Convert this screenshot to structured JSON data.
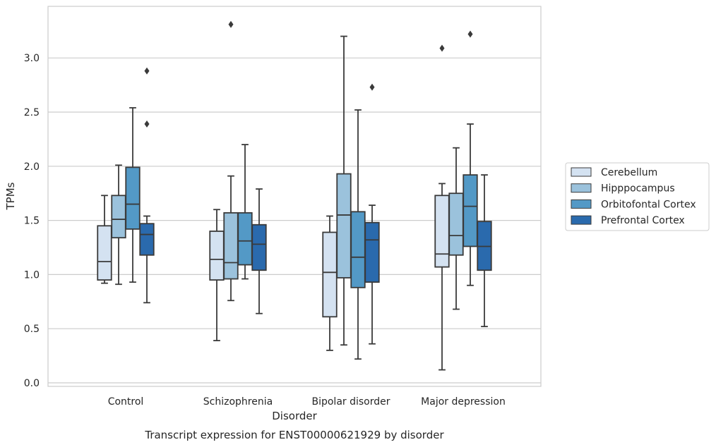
{
  "chart_data": {
    "type": "box",
    "title": "",
    "xlabel": "Disorder",
    "ylabel": "TPMs",
    "caption": "Transcript expression for ENST00000621929 by disorder",
    "categories": [
      "Control",
      "Schizophrenia",
      "Bipolar disorder",
      "Major depression"
    ],
    "y_ticks": [
      "0.0",
      "0.5",
      "1.0",
      "1.5",
      "2.0",
      "2.5",
      "3.0"
    ],
    "y_tick_values": [
      0,
      0.5,
      1.0,
      1.5,
      2.0,
      2.5,
      3.0
    ],
    "ylim": [
      -0.03,
      3.48
    ],
    "grid": true,
    "legend_position": "right",
    "series": [
      {
        "name": "Cerebellum",
        "color": "#d4e2f1",
        "boxes": [
          {
            "whisker_low": 0.92,
            "q1": 0.95,
            "median": 1.12,
            "q3": 1.45,
            "whisker_high": 1.73,
            "outliers": []
          },
          {
            "whisker_low": 0.39,
            "q1": 0.95,
            "median": 1.14,
            "q3": 1.4,
            "whisker_high": 1.6,
            "outliers": []
          },
          {
            "whisker_low": 0.3,
            "q1": 0.61,
            "median": 1.02,
            "q3": 1.39,
            "whisker_high": 1.54,
            "outliers": []
          },
          {
            "whisker_low": 0.12,
            "q1": 1.07,
            "median": 1.19,
            "q3": 1.73,
            "whisker_high": 1.84,
            "outliers": [
              3.09
            ]
          }
        ]
      },
      {
        "name": "Hipppocampus",
        "color": "#9bc2dc",
        "boxes": [
          {
            "whisker_low": 0.91,
            "q1": 1.34,
            "median": 1.51,
            "q3": 1.73,
            "whisker_high": 2.01,
            "outliers": []
          },
          {
            "whisker_low": 0.76,
            "q1": 0.96,
            "median": 1.11,
            "q3": 1.57,
            "whisker_high": 1.91,
            "outliers": [
              3.31
            ]
          },
          {
            "whisker_low": 0.35,
            "q1": 0.97,
            "median": 1.55,
            "q3": 1.93,
            "whisker_high": 3.2,
            "outliers": []
          },
          {
            "whisker_low": 0.68,
            "q1": 1.18,
            "median": 1.36,
            "q3": 1.75,
            "whisker_high": 2.17,
            "outliers": []
          }
        ]
      },
      {
        "name": "Orbitofontal Cortex",
        "color": "#5399c6",
        "boxes": [
          {
            "whisker_low": 0.93,
            "q1": 1.42,
            "median": 1.65,
            "q3": 1.99,
            "whisker_high": 2.54,
            "outliers": []
          },
          {
            "whisker_low": 0.96,
            "q1": 1.09,
            "median": 1.31,
            "q3": 1.57,
            "whisker_high": 2.2,
            "outliers": []
          },
          {
            "whisker_low": 0.22,
            "q1": 0.88,
            "median": 1.16,
            "q3": 1.58,
            "whisker_high": 2.52,
            "outliers": []
          },
          {
            "whisker_low": 0.9,
            "q1": 1.26,
            "median": 1.63,
            "q3": 1.92,
            "whisker_high": 2.39,
            "outliers": [
              3.22
            ]
          }
        ]
      },
      {
        "name": "Prefrontal Cortex",
        "color": "#2a6aad",
        "boxes": [
          {
            "whisker_low": 0.74,
            "q1": 1.18,
            "median": 1.37,
            "q3": 1.47,
            "whisker_high": 1.54,
            "outliers": [
              2.39,
              2.88
            ]
          },
          {
            "whisker_low": 0.64,
            "q1": 1.04,
            "median": 1.28,
            "q3": 1.46,
            "whisker_high": 1.79,
            "outliers": []
          },
          {
            "whisker_low": 0.36,
            "q1": 0.93,
            "median": 1.32,
            "q3": 1.48,
            "whisker_high": 1.64,
            "outliers": [
              2.73
            ]
          },
          {
            "whisker_low": 0.52,
            "q1": 1.04,
            "median": 1.26,
            "q3": 1.49,
            "whisker_high": 1.92,
            "outliers": []
          }
        ]
      }
    ]
  }
}
